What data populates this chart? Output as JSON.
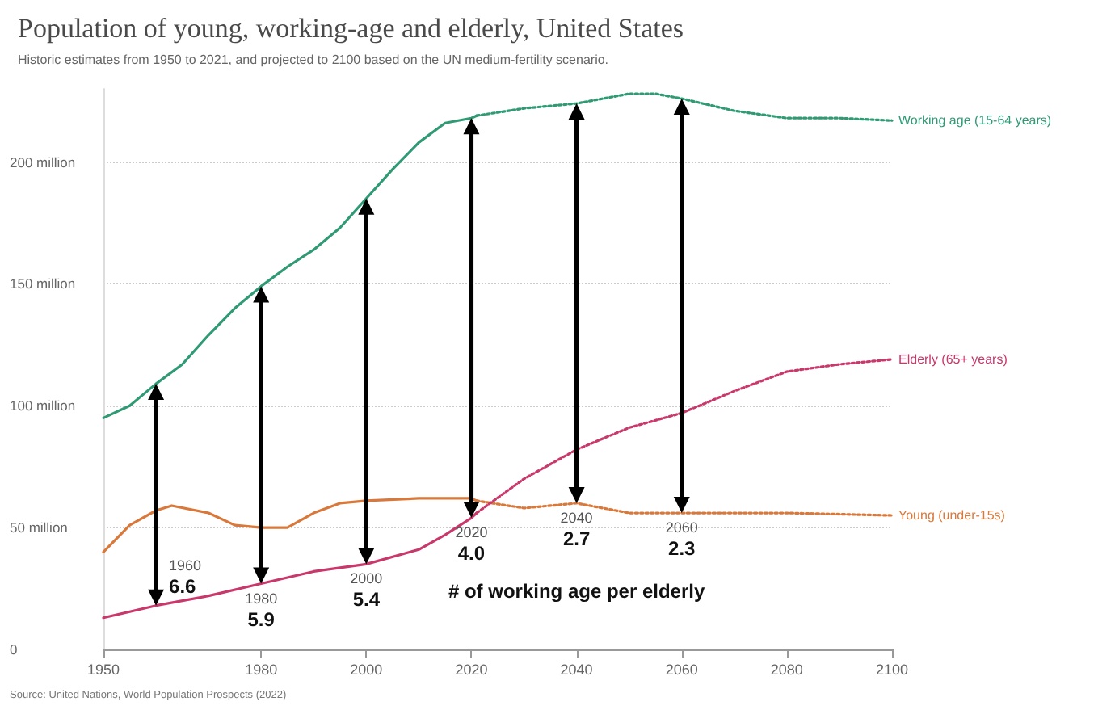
{
  "chart_data": {
    "type": "line",
    "title": "Population of young, working-age and elderly, United States",
    "subtitle": "Historic estimates from 1950 to 2021, and projected to 2100 based on the UN medium-fertility scenario.",
    "xlim": [
      1950,
      2100
    ],
    "xticks": [
      1950,
      1980,
      2000,
      2020,
      2040,
      2060,
      2080,
      2100
    ],
    "ylim": [
      0,
      230
    ],
    "yticks": [
      0,
      {
        "value": 50,
        "label": "50 million"
      },
      {
        "value": 100,
        "label": "100 million"
      },
      {
        "value": 150,
        "label": "150 million"
      },
      {
        "value": 200,
        "label": "200 million"
      }
    ],
    "grid": "y",
    "legend": false,
    "marker": "none",
    "series": [
      {
        "color": "#2f9a74",
        "line_style": "solid",
        "x": [
          1950,
          1955,
          1960,
          1965,
          1970,
          1975,
          1980,
          1985,
          1990,
          1995,
          2000,
          2005,
          2010,
          2015,
          2020,
          2021
        ],
        "values": [
          95,
          100,
          109,
          117,
          129,
          140,
          149,
          157,
          164,
          173,
          185,
          197,
          208,
          216,
          218,
          219
        ]
      },
      {
        "name": "Working age (15-64 years)",
        "color": "#2f9a74",
        "line_style": "dotted",
        "x": [
          2021,
          2030,
          2040,
          2050,
          2055,
          2060,
          2070,
          2080,
          2090,
          2100
        ],
        "values": [
          219,
          222,
          224,
          228,
          228,
          226,
          221,
          218,
          218,
          217
        ]
      },
      {
        "color": "#d8783a",
        "line_style": "solid",
        "x": [
          1950,
          1955,
          1960,
          1963,
          1970,
          1975,
          1980,
          1985,
          1990,
          1995,
          2000,
          2010,
          2020,
          2021
        ],
        "values": [
          40,
          51,
          57,
          59,
          56,
          51,
          50,
          50,
          56,
          60,
          61,
          62,
          62,
          61
        ]
      },
      {
        "name": "Young (under-15s)",
        "color": "#d8783a",
        "line_style": "dotted",
        "x": [
          2021,
          2030,
          2040,
          2050,
          2060,
          2080,
          2100
        ],
        "values": [
          61,
          58,
          60,
          56,
          56,
          56,
          55
        ]
      },
      {
        "color": "#c8386b",
        "line_style": "solid",
        "x": [
          1950,
          1960,
          1970,
          1980,
          1990,
          2000,
          2010,
          2015,
          2020,
          2021
        ],
        "values": [
          13,
          18,
          22,
          27,
          32,
          35,
          41,
          47,
          54,
          56
        ]
      },
      {
        "name": "Elderly (65+ years)",
        "color": "#c8386b",
        "line_style": "dotted",
        "x": [
          2021,
          2030,
          2040,
          2050,
          2060,
          2070,
          2080,
          2090,
          2100
        ],
        "values": [
          56,
          70,
          82,
          91,
          97,
          106,
          114,
          117,
          119
        ]
      }
    ],
    "annotations": [
      "# of working age per elderly",
      "Source: United Nations, World Population Prospects (2022)",
      {
        "text": "1960\n6.6",
        "x": 1960,
        "y": 109
      },
      {
        "text": "1980\n5.9",
        "x": 1980,
        "y": 149
      },
      {
        "text": "2000\n5.4",
        "x": 2000,
        "y": 185
      },
      {
        "text": "2020\n4.0",
        "x": 2020,
        "y": 218
      },
      {
        "text": "2040\n2.7",
        "x": 2040,
        "y": 224
      },
      {
        "text": "2060\n2.3",
        "x": 2060,
        "y": 226
      }
    ]
  }
}
